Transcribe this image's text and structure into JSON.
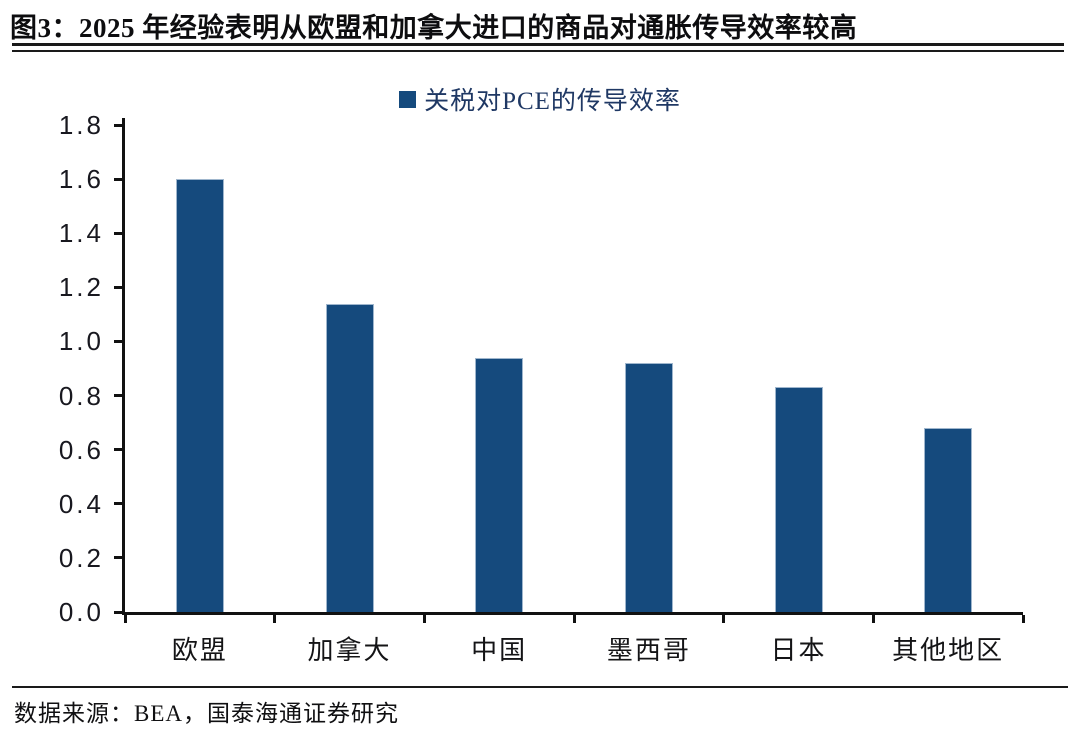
{
  "header": {
    "title": "图3：2025 年经验表明从欧盟和加拿大进口的商品对通胀传导效率较高"
  },
  "legend": {
    "label": "关税对PCE的传导效率",
    "marker_color": "#154A7D"
  },
  "footer": {
    "source": "数据来源：BEA，国泰海通证券研究"
  },
  "chart_data": {
    "type": "bar",
    "title": "图3：2025 年经验表明从欧盟和加拿大进口的商品对通胀传导效率较高",
    "legend": "关税对PCE的传导效率",
    "categories": [
      "欧盟",
      "加拿大",
      "中国",
      "墨西哥",
      "日本",
      "其他地区"
    ],
    "values": [
      1.6,
      1.14,
      0.94,
      0.92,
      0.83,
      0.68
    ],
    "xlabel": "",
    "ylabel": "",
    "ylim": [
      0.0,
      1.8
    ],
    "ytick_step": 0.2,
    "ytick_labels": [
      "1.8",
      "1.6",
      "1.4",
      "1.2",
      "1.0",
      "0.8",
      "0.6",
      "0.4",
      "0.2",
      "0.0"
    ],
    "grid": false,
    "legend_position": "top-center",
    "bar_color": "#154A7D",
    "source": "数据来源：BEA，国泰海通证券研究"
  }
}
